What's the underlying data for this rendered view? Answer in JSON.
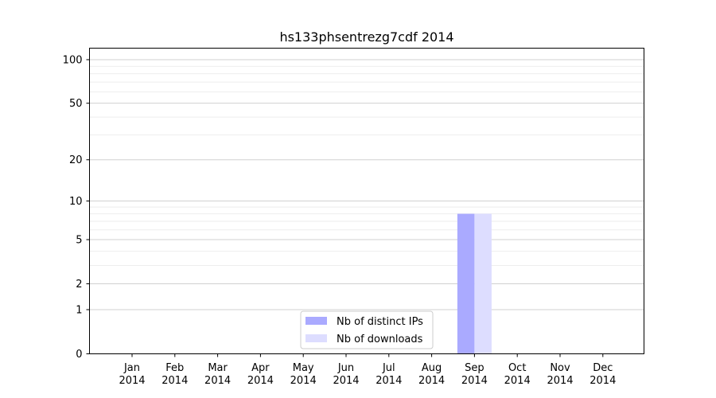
{
  "chart_data": {
    "type": "bar",
    "title": "hs133phsentrezg7cdf 2014",
    "xlabel": "",
    "ylabel": "",
    "y_scale": "log1p",
    "ylim": [
      0,
      120
    ],
    "y_ticks": [
      0,
      1,
      2,
      5,
      10,
      20,
      50,
      100
    ],
    "y_tick_labels": [
      "0",
      "1",
      "2",
      "5",
      "10",
      "20",
      "50",
      "100"
    ],
    "categories": [
      {
        "month": "Jan",
        "year": "2014"
      },
      {
        "month": "Feb",
        "year": "2014"
      },
      {
        "month": "Mar",
        "year": "2014"
      },
      {
        "month": "Apr",
        "year": "2014"
      },
      {
        "month": "May",
        "year": "2014"
      },
      {
        "month": "Jun",
        "year": "2014"
      },
      {
        "month": "Jul",
        "year": "2014"
      },
      {
        "month": "Aug",
        "year": "2014"
      },
      {
        "month": "Sep",
        "year": "2014"
      },
      {
        "month": "Oct",
        "year": "2014"
      },
      {
        "month": "Nov",
        "year": "2014"
      },
      {
        "month": "Dec",
        "year": "2014"
      }
    ],
    "series": [
      {
        "name": "Nb of distinct IPs",
        "color": "#aaaaff",
        "values": [
          0,
          0,
          0,
          0,
          0,
          0,
          0,
          0,
          8,
          0,
          0,
          0
        ]
      },
      {
        "name": "Nb of downloads",
        "color": "#ddddff",
        "values": [
          0,
          0,
          0,
          0,
          0,
          0,
          0,
          0,
          8,
          0,
          0,
          0
        ]
      }
    ],
    "grid": true,
    "legend_position": "lower-center"
  }
}
